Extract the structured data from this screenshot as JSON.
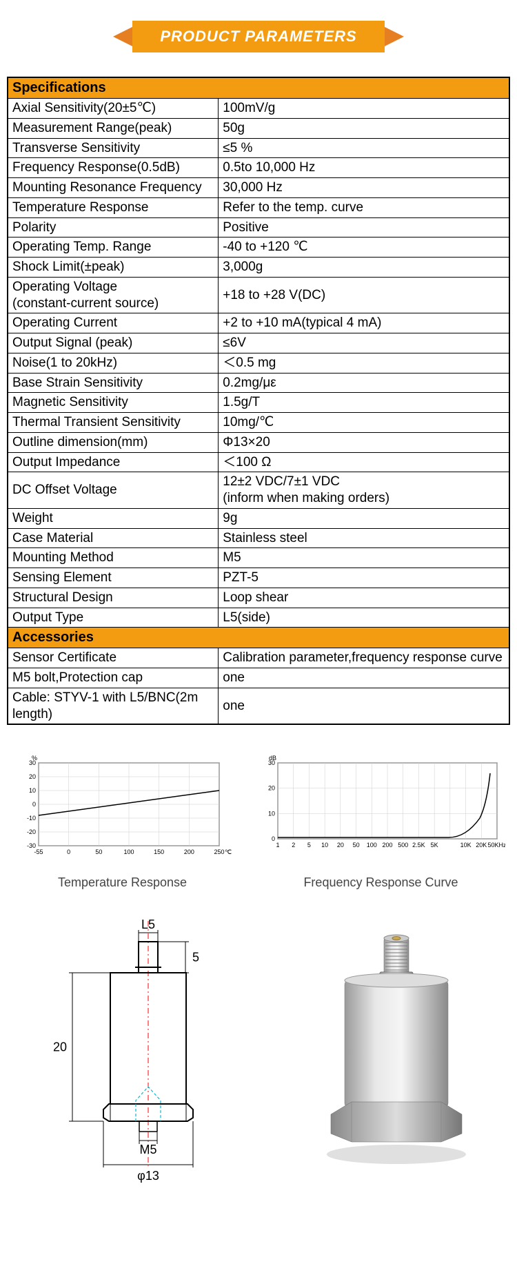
{
  "banner": {
    "title": "PRODUCT PARAMETERS"
  },
  "sections": {
    "specs_header": "Specifications",
    "accessories_header": "Accessories"
  },
  "specs": [
    {
      "k": "Axial Sensitivity(20±5℃)",
      "v": "100mV/g"
    },
    {
      "k": "Measurement Range(peak)",
      "v": "50g"
    },
    {
      "k": "Transverse Sensitivity",
      "v": "≤5 %"
    },
    {
      "k": "Frequency Response(0.5dB)",
      "v": "0.5to 10,000 Hz"
    },
    {
      "k": "Mounting Resonance Frequency",
      "v": "30,000 Hz"
    },
    {
      "k": "Temperature Response",
      "v": "Refer to the temp. curve"
    },
    {
      "k": "Polarity",
      "v": "Positive"
    },
    {
      "k": "Operating Temp. Range",
      "v": "-40 to +120 ℃"
    },
    {
      "k": "Shock Limit(±peak)",
      "v": "3,000g"
    },
    {
      "k": "Operating Voltage\n(constant-current source)",
      "v": "+18 to +28 V(DC)"
    },
    {
      "k": "Operating Current",
      "v": "+2 to +10 mA(typical 4 mA)"
    },
    {
      "k": "Output Signal (peak)",
      "v": "≤6V"
    },
    {
      "k": "Noise(1 to 20kHz)",
      "v": "＜0.5 mg"
    },
    {
      "k": "Base Strain Sensitivity",
      "v": "0.2mg/με"
    },
    {
      "k": "Magnetic Sensitivity",
      "v": "1.5g/T"
    },
    {
      "k": "Thermal Transient Sensitivity",
      "v": "10mg/℃"
    },
    {
      "k": "Outline dimension(mm)",
      "v": "Φ13×20"
    },
    {
      "k": "Output Impedance",
      "v": "＜100 Ω"
    },
    {
      "k": "DC Offset Voltage",
      "v": "12±2 VDC/7±1 VDC\n(inform when making orders)"
    },
    {
      "k": "Weight",
      "v": "9g"
    },
    {
      "k": "Case Material",
      "v": "Stainless steel"
    },
    {
      "k": "Mounting Method",
      "v": "M5"
    },
    {
      "k": "Sensing Element",
      "v": "PZT-5"
    },
    {
      "k": "Structural Design",
      "v": "Loop shear"
    },
    {
      "k": "Output Type",
      "v": "L5(side)"
    }
  ],
  "accessories": [
    {
      "k": "Sensor Certificate",
      "v": "Calibration parameter,frequency response curve"
    },
    {
      "k": "M5 bolt,Protection cap",
      "v": "one"
    },
    {
      "k": "Cable: STYV-1 with L5/BNC(2m length)",
      "v": "one"
    }
  ],
  "chart_temp": {
    "label": "Temperature Response",
    "y_unit": "%",
    "x_unit": "℃",
    "y_ticks": [
      "30",
      "20",
      "10",
      "0",
      "-10",
      "-20",
      "-30"
    ],
    "x_ticks": [
      "-55",
      "0",
      "50",
      "100",
      "150",
      "200",
      "250"
    ],
    "line_points": [
      [
        -55,
        -8
      ],
      [
        250,
        10
      ]
    ],
    "ylim": [
      -30,
      30
    ],
    "xlim": [
      -55,
      250
    ],
    "line_color": "#000000",
    "grid_color": "#cccccc",
    "axis_color": "#000000",
    "bg_color": "#ffffff",
    "tick_fontsize": 9
  },
  "chart_freq": {
    "label": "Frequency Response Curve",
    "y_unit": "dB",
    "y_ticks": [
      "30",
      "20",
      "10",
      "0"
    ],
    "x_ticks": [
      "1",
      "2",
      "5",
      "10",
      "20",
      "50",
      "100",
      "200",
      "500",
      "2.5K",
      "5K",
      "",
      "10K",
      "20K",
      "50KHz"
    ],
    "x_scale": "log",
    "ylim": [
      0,
      30
    ],
    "line_shape": "flat_then_rise",
    "line_color": "#000000",
    "grid_color": "#cccccc",
    "axis_color": "#000000",
    "bg_color": "#ffffff",
    "tick_fontsize": 9
  },
  "drawing": {
    "dims": {
      "L5": "L5",
      "top_h": "5",
      "body_h": "20",
      "mount": "M5",
      "dia": "φ13"
    },
    "outline_color": "#000000",
    "centerline_color": "#ff0000",
    "hidden_line_color": "#00bcd4",
    "hidden_line_dash": "4,3",
    "centerline_dash": "8,4,2,4",
    "label_fontsize": 18
  },
  "colors": {
    "banner_bg": "#f39c12",
    "banner_side": "#e67e22",
    "banner_text": "#ffffff",
    "section_bg": "#f39c12",
    "border": "#000000",
    "text": "#000000",
    "chart_label": "#444444"
  }
}
